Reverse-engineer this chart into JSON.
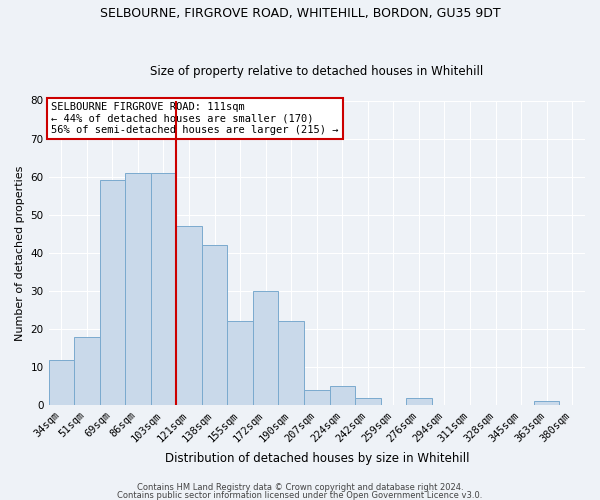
{
  "title": "SELBOURNE, FIRGROVE ROAD, WHITEHILL, BORDON, GU35 9DT",
  "subtitle": "Size of property relative to detached houses in Whitehill",
  "xlabel": "Distribution of detached houses by size in Whitehill",
  "ylabel": "Number of detached properties",
  "categories": [
    "34sqm",
    "51sqm",
    "69sqm",
    "86sqm",
    "103sqm",
    "121sqm",
    "138sqm",
    "155sqm",
    "172sqm",
    "190sqm",
    "207sqm",
    "224sqm",
    "242sqm",
    "259sqm",
    "276sqm",
    "294sqm",
    "311sqm",
    "328sqm",
    "345sqm",
    "363sqm",
    "380sqm"
  ],
  "values": [
    12,
    18,
    59,
    61,
    61,
    47,
    42,
    22,
    30,
    22,
    4,
    5,
    2,
    0,
    2,
    0,
    0,
    0,
    0,
    1,
    0
  ],
  "bar_color": "#c9d9ea",
  "bar_edge_color": "#7aaace",
  "vline_x": 4.5,
  "vline_color": "#cc0000",
  "ylim": [
    0,
    80
  ],
  "yticks": [
    0,
    10,
    20,
    30,
    40,
    50,
    60,
    70,
    80
  ],
  "annotation_line1": "SELBOURNE FIRGROVE ROAD: 111sqm",
  "annotation_line2": "← 44% of detached houses are smaller (170)",
  "annotation_line3": "56% of semi-detached houses are larger (215) →",
  "footer1": "Contains HM Land Registry data © Crown copyright and database right 2024.",
  "footer2": "Contains public sector information licensed under the Open Government Licence v3.0.",
  "background_color": "#eef2f7",
  "annotation_box_color": "#ffffff",
  "annotation_box_edge": "#cc0000",
  "title_fontsize": 9,
  "subtitle_fontsize": 8.5,
  "ylabel_fontsize": 8,
  "xlabel_fontsize": 8.5,
  "tick_fontsize": 7.5,
  "ann_fontsize": 7.5,
  "footer_fontsize": 6.0
}
